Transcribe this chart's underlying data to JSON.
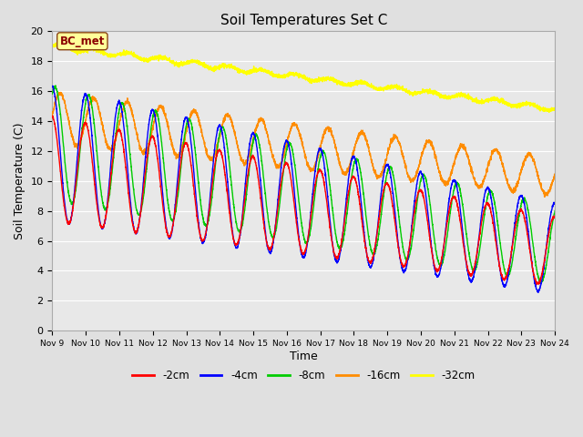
{
  "title": "Soil Temperatures Set C",
  "xlabel": "Time",
  "ylabel": "Soil Temperature (C)",
  "ylim": [
    0,
    20
  ],
  "annotation_text": "BC_met",
  "annotation_color": "#8B0000",
  "annotation_bg": "#FFFF99",
  "annotation_border": "#8B4513",
  "x_tick_labels": [
    "Nov 9",
    "Nov 10",
    "Nov 11",
    "Nov 12",
    "Nov 13",
    "Nov 14",
    "Nov 15",
    "Nov 16",
    "Nov 17",
    "Nov 18",
    "Nov 19",
    "Nov 20",
    "Nov 21",
    "Nov 22",
    "Nov 23",
    "Nov 24"
  ],
  "legend_labels": [
    "-2cm",
    "-4cm",
    "-8cm",
    "-16cm",
    "-32cm"
  ],
  "line_colors": [
    "#FF0000",
    "#0000FF",
    "#00CC00",
    "#FF8C00",
    "#FFFF00"
  ],
  "bg_color": "#E0E0E0",
  "plot_bg_color": "#E8E8E8",
  "grid_color": "#FFFFFF",
  "n_points": 3600,
  "figsize": [
    6.4,
    4.8
  ],
  "dpi": 100
}
